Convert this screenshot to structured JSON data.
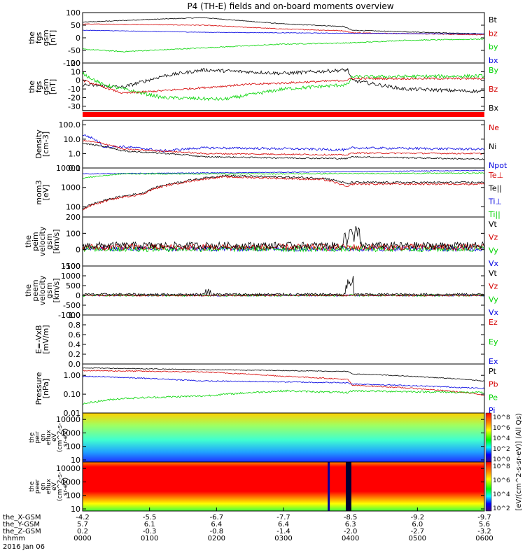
{
  "title": "P4 (TH-E) fields and on-board moments overview",
  "colors": {
    "black": "#000000",
    "red": "#d40000",
    "green": "#00d400",
    "blue": "#0000e0"
  },
  "panels": [
    {
      "id": "p1",
      "ylabel": [
        "the",
        "fgs",
        "gsm",
        "[nT]"
      ],
      "ylim": [
        -100,
        100
      ],
      "ticks": [
        {
          "v": 100,
          "t": "100"
        },
        {
          "v": 50,
          "t": "50"
        },
        {
          "v": 0,
          "t": "0"
        },
        {
          "v": -50,
          "t": "-50"
        },
        {
          "v": -100,
          "t": "-100"
        }
      ],
      "legend": [
        {
          "t": "Bt",
          "c": "black"
        },
        {
          "t": "bz",
          "c": "red"
        },
        {
          "t": "by",
          "c": "green"
        },
        {
          "t": "bx",
          "c": "blue"
        }
      ]
    },
    {
      "id": "p2",
      "ylabel": [
        "the",
        "fgs",
        "gsm",
        "[nT]"
      ],
      "ylim": [
        -35,
        20
      ],
      "ticks": [
        {
          "v": 20,
          "t": "20"
        },
        {
          "v": 10,
          "t": "10"
        },
        {
          "v": 0,
          "t": "0"
        },
        {
          "v": -10,
          "t": "-10"
        },
        {
          "v": -20,
          "t": "-20"
        },
        {
          "v": -30,
          "t": "-30"
        }
      ],
      "legend": [
        {
          "t": "By",
          "c": "green"
        },
        {
          "t": "Bz",
          "c": "red"
        },
        {
          "t": "Bx",
          "c": "black"
        }
      ]
    },
    {
      "id": "p3",
      "ylabel": [
        "Density",
        "[cm-3]"
      ],
      "ylim": [
        0.1,
        200
      ],
      "log": true,
      "ticks": [
        {
          "v": 100,
          "t": "100.0"
        },
        {
          "v": 10,
          "t": "10.0"
        },
        {
          "v": 1,
          "t": "1.0"
        },
        {
          "v": 0.1,
          "t": "0.1"
        }
      ],
      "legend": [
        {
          "t": "Ne",
          "c": "red"
        },
        {
          "t": "Ni",
          "c": "black"
        },
        {
          "t": "Npot",
          "c": "blue"
        }
      ]
    },
    {
      "id": "p4",
      "ylabel": [
        "mom3",
        "[eV]"
      ],
      "ylim": [
        30,
        10000
      ],
      "log": true,
      "ticks": [
        {
          "v": 10000,
          "t": "10000"
        },
        {
          "v": 1000,
          "t": "1000"
        },
        {
          "v": 100,
          "t": "100"
        }
      ],
      "legend": [
        {
          "t": "Te⊥",
          "c": "red"
        },
        {
          "t": "Te||",
          "c": "black"
        },
        {
          "t": "Ti⊥",
          "c": "blue"
        },
        {
          "t": "Ti||",
          "c": "green"
        }
      ]
    },
    {
      "id": "p5",
      "ylabel": [
        "the",
        "peim",
        "velocity",
        "gsm",
        "[km/s]"
      ],
      "ylim": [
        -100,
        200
      ],
      "ticks": [
        {
          "v": 200,
          "t": "200"
        },
        {
          "v": 100,
          "t": "100"
        },
        {
          "v": 0,
          "t": "0"
        },
        {
          "v": -100,
          "t": "-100"
        }
      ],
      "legend": [
        {
          "t": "Vt",
          "c": "black"
        },
        {
          "t": "Vz",
          "c": "red"
        },
        {
          "t": "Vy",
          "c": "green"
        },
        {
          "t": "Vx",
          "c": "blue"
        }
      ]
    },
    {
      "id": "p6",
      "ylabel": [
        "the",
        "peem",
        "velocity",
        "gsm",
        "[km/s]"
      ],
      "ylim": [
        -1000,
        1500
      ],
      "ticks": [
        {
          "v": 1500,
          "t": "1500"
        },
        {
          "v": 1000,
          "t": "1000"
        },
        {
          "v": 500,
          "t": "500"
        },
        {
          "v": 0,
          "t": "0"
        },
        {
          "v": -500,
          "t": "-500"
        },
        {
          "v": -1000,
          "t": "-1000"
        }
      ],
      "legend": [
        {
          "t": "Vt",
          "c": "black"
        },
        {
          "t": "Vz",
          "c": "red"
        },
        {
          "t": "Vy",
          "c": "green"
        },
        {
          "t": "Vx",
          "c": "blue"
        }
      ]
    },
    {
      "id": "p7",
      "ylabel": [
        "E=-VxB",
        "[mV/m]"
      ],
      "ylim": [
        0,
        1
      ],
      "ticks": [
        {
          "v": 1,
          "t": "1.0"
        },
        {
          "v": 0.8,
          "t": "0.8"
        },
        {
          "v": 0.6,
          "t": "0.6"
        },
        {
          "v": 0.4,
          "t": "0.4"
        },
        {
          "v": 0.2,
          "t": "0.2"
        },
        {
          "v": 0,
          "t": "0.0"
        }
      ],
      "legend": [
        {
          "t": "Ez",
          "c": "red"
        },
        {
          "t": "Ey",
          "c": "green"
        },
        {
          "t": "Ex",
          "c": "blue"
        }
      ]
    },
    {
      "id": "p8",
      "ylabel": [
        "Pressure",
        "[nPa]"
      ],
      "ylim": [
        0.01,
        4
      ],
      "log": true,
      "ticks": [
        {
          "v": 1,
          "t": "1.00"
        },
        {
          "v": 0.1,
          "t": "0.10"
        },
        {
          "v": 0.01,
          "t": "0.01"
        }
      ],
      "legend": [
        {
          "t": "Pt",
          "c": "black"
        },
        {
          "t": "Pb",
          "c": "red"
        },
        {
          "t": "Pe",
          "c": "green"
        },
        {
          "t": "Pi",
          "c": "blue"
        }
      ]
    },
    {
      "id": "p9",
      "ylabel": [
        "the",
        "peir",
        "en",
        "eflux",
        "eV",
        "(cm^2-s-",
        "sr-eV)"
      ],
      "ylim": [
        7,
        30000
      ],
      "log": true,
      "ticks": [
        {
          "v": 10000,
          "t": "10000"
        },
        {
          "v": 1000,
          "t": "1000"
        },
        {
          "v": 100,
          "t": "100"
        },
        {
          "v": 10,
          "t": "10"
        }
      ],
      "legend": []
    },
    {
      "id": "p10",
      "ylabel": [
        "the",
        "peer",
        "en",
        "eflux",
        "eV",
        "(cm^2-s-",
        "sr-eV)"
      ],
      "ylim": [
        7,
        30000
      ],
      "log": true,
      "ticks": [
        {
          "v": 10000,
          "t": "10000"
        },
        {
          "v": 1000,
          "t": "1000"
        },
        {
          "v": 100,
          "t": "100"
        },
        {
          "v": 10,
          "t": "10"
        }
      ],
      "legend": []
    }
  ],
  "colorbars": [
    {
      "id": "cb1",
      "ticks": [
        "10^8",
        "10^6",
        "10^4",
        "10^2",
        "10^0"
      ]
    },
    {
      "id": "cb2",
      "ticks": [
        "10^8",
        "10^6",
        "10^4",
        "10^2"
      ]
    }
  ],
  "colorbar_label": "[eV/(cm^2-s-sr-eV)] (All Qs)",
  "x_axis": {
    "rows": [
      {
        "label": "the_X-GSM",
        "values": [
          "-4.2",
          "-5.5",
          "-6.7",
          "-7.7",
          "-8.5",
          "-9.2",
          "-9.7"
        ]
      },
      {
        "label": "the_Y-GSM",
        "values": [
          "5.7",
          "6.1",
          "6.4",
          "6.4",
          "6.3",
          "6.0",
          "5.6"
        ]
      },
      {
        "label": "the_Z-GSM",
        "values": [
          "0.2",
          "-0.3",
          "-0.8",
          "-1.4",
          "-2.0",
          "-2.7",
          "-3.2"
        ]
      },
      {
        "label": "hhmm",
        "values": [
          "0000",
          "0100",
          "0200",
          "0300",
          "0400",
          "0500",
          "0600"
        ]
      }
    ],
    "date": "2016 Jan 06"
  }
}
